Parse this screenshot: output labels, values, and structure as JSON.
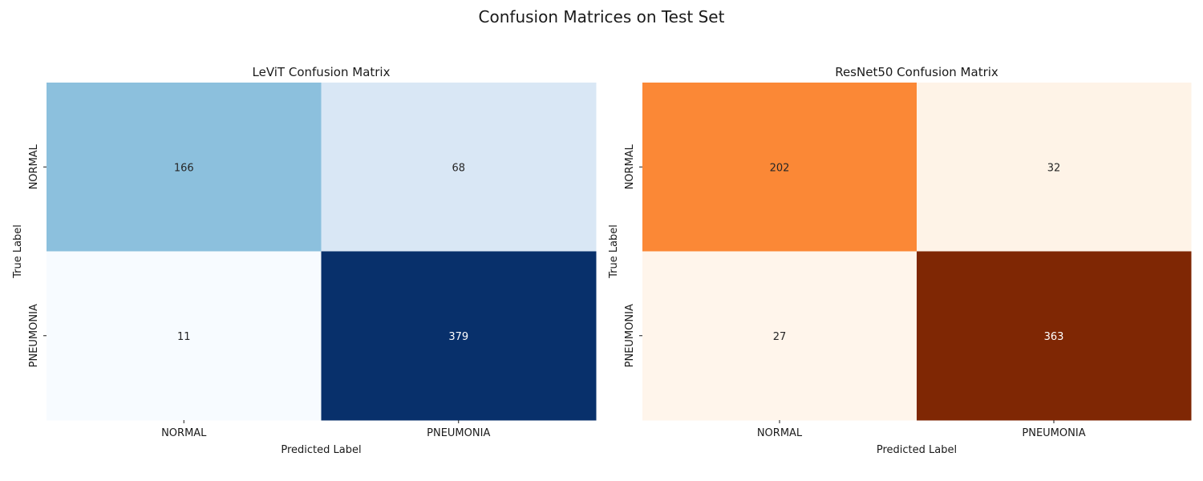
{
  "figure": {
    "suptitle": "Confusion Matrices on Test Set"
  },
  "chart_data": [
    {
      "type": "heatmap",
      "title": "LeViT Confusion Matrix",
      "xlabel": "Predicted Label",
      "ylabel": "True Label",
      "x_categories": [
        "NORMAL",
        "PNEUMONIA"
      ],
      "y_categories": [
        "NORMAL",
        "PNEUMONIA"
      ],
      "values": [
        [
          166,
          68
        ],
        [
          11,
          379
        ]
      ],
      "colormap": "Blues",
      "colors": {
        "low": "#f7fbff",
        "high": "#08306b",
        "cells": [
          [
            "#8cc0dd",
            "#d9e7f5"
          ],
          [
            "#f7fbff",
            "#08306b"
          ]
        ],
        "label_dark": "#262626",
        "label_light": "#ffffff"
      },
      "colorbar": false,
      "grid": false
    },
    {
      "type": "heatmap",
      "title": "ResNet50 Confusion Matrix",
      "xlabel": "Predicted Label",
      "ylabel": "True Label",
      "x_categories": [
        "NORMAL",
        "PNEUMONIA"
      ],
      "y_categories": [
        "NORMAL",
        "PNEUMONIA"
      ],
      "values": [
        [
          202,
          32
        ],
        [
          27,
          363
        ]
      ],
      "colormap": "Oranges",
      "colors": {
        "low": "#fff5eb",
        "high": "#7f2704",
        "cells": [
          [
            "#fb8836",
            "#fef3e7"
          ],
          [
            "#fff5eb",
            "#7f2704"
          ]
        ],
        "label_dark": "#262626",
        "label_light": "#ffffff"
      },
      "colorbar": false,
      "grid": false
    }
  ]
}
